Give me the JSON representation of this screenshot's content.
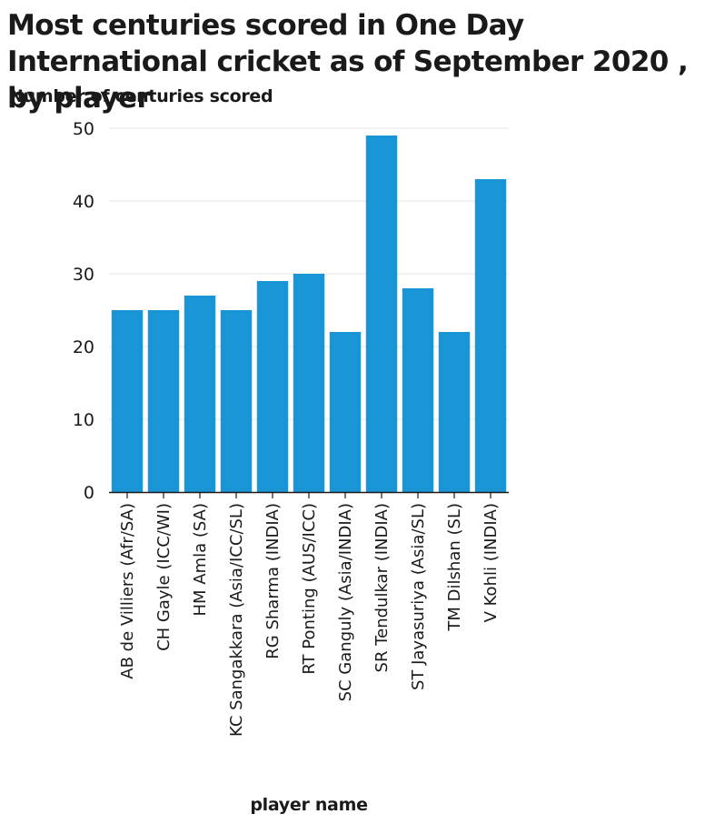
{
  "chart_data": {
    "type": "bar",
    "title": "Most centuries scored in One Day International cricket as of September 2020 , by player",
    "ylabel": "Number of centuries scored",
    "xlabel": "player name",
    "ylim": [
      0,
      50
    ],
    "yticks": [
      0,
      10,
      20,
      30,
      40,
      50
    ],
    "grid": true,
    "bar_color": "#1a96d6",
    "categories": [
      "AB de Villiers (Afr/SA)",
      "CH Gayle (ICC/WI)",
      "HM Amla (SA)",
      "KC Sangakkara (Asia/ICC/SL)",
      "RG Sharma (INDIA)",
      "RT Ponting (AUS/ICC)",
      "SC Ganguly (Asia/INDIA)",
      "SR Tendulkar (INDIA)",
      "ST Jayasuriya (Asia/SL)",
      "TM Dilshan (SL)",
      "V Kohli (INDIA)"
    ],
    "values": [
      25,
      25,
      27,
      25,
      29,
      30,
      22,
      49,
      28,
      22,
      43
    ]
  }
}
